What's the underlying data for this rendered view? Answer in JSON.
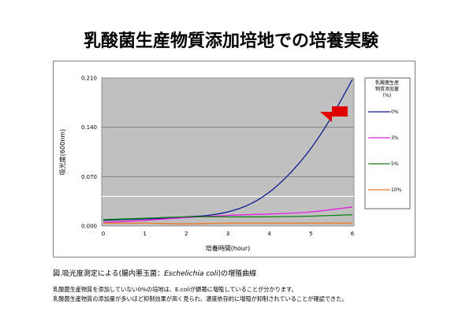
{
  "page": {
    "title": "乳酸菌生産物質添加培地での培養実験",
    "caption_prefix": "図.吸光度測定による(腸内悪玉菌：",
    "caption_species": "Eschelichia coli",
    "caption_suffix": ")の増殖曲線",
    "notes": [
      "乳酸菌生産物質を添加していない0%の培地は、E.coliが顕著に増殖していることが分かります。",
      "乳酸菌生産物質の添加量が多いほど抑制効果が高く見られ、濃度依存的に増殖が抑制されていることが確認できた。"
    ]
  },
  "chart_data": {
    "type": "line",
    "xlabel": "培養時間(hour)",
    "ylabel": "吸光度(600nm)",
    "xlim": [
      0,
      6
    ],
    "ylim": [
      0,
      0.21
    ],
    "x_ticks": [
      "0",
      "1",
      "2",
      "3",
      "4",
      "5",
      "6"
    ],
    "y_ticks": [
      "0.000",
      "0.070",
      "0.140",
      "0.210"
    ],
    "grid": true,
    "plot_background": "#c0c0c0",
    "legend_title": "乳酸菌生産物質添加量(%)",
    "legend_placement": "right",
    "arrow_color": "#e00000",
    "series": [
      {
        "name": "0%",
        "color": "#0a1a8c",
        "x": [
          0,
          0.5,
          1,
          1.5,
          2,
          2.5,
          3,
          3.5,
          4,
          4.5,
          5,
          5.5,
          6
        ],
        "values": [
          0.008,
          0.009,
          0.01,
          0.011,
          0.013,
          0.015,
          0.02,
          0.03,
          0.048,
          0.075,
          0.11,
          0.155,
          0.208
        ]
      },
      {
        "name": "3%",
        "color": "#e020e0",
        "x": [
          0,
          1,
          2,
          3,
          4,
          5,
          6
        ],
        "values": [
          0.005,
          0.008,
          0.012,
          0.015,
          0.017,
          0.02,
          0.027
        ]
      },
      {
        "name": "5%",
        "color": "#108010",
        "x": [
          0,
          1,
          2,
          3,
          4,
          5,
          6
        ],
        "values": [
          0.009,
          0.011,
          0.013,
          0.013,
          0.013,
          0.014,
          0.016
        ]
      },
      {
        "name": "10%",
        "color": "#f07820",
        "x": [
          0,
          1,
          2,
          3,
          4,
          5,
          6
        ],
        "values": [
          0.004,
          0.004,
          0.003,
          0.004,
          0.004,
          0.004,
          0.004
        ]
      }
    ]
  }
}
